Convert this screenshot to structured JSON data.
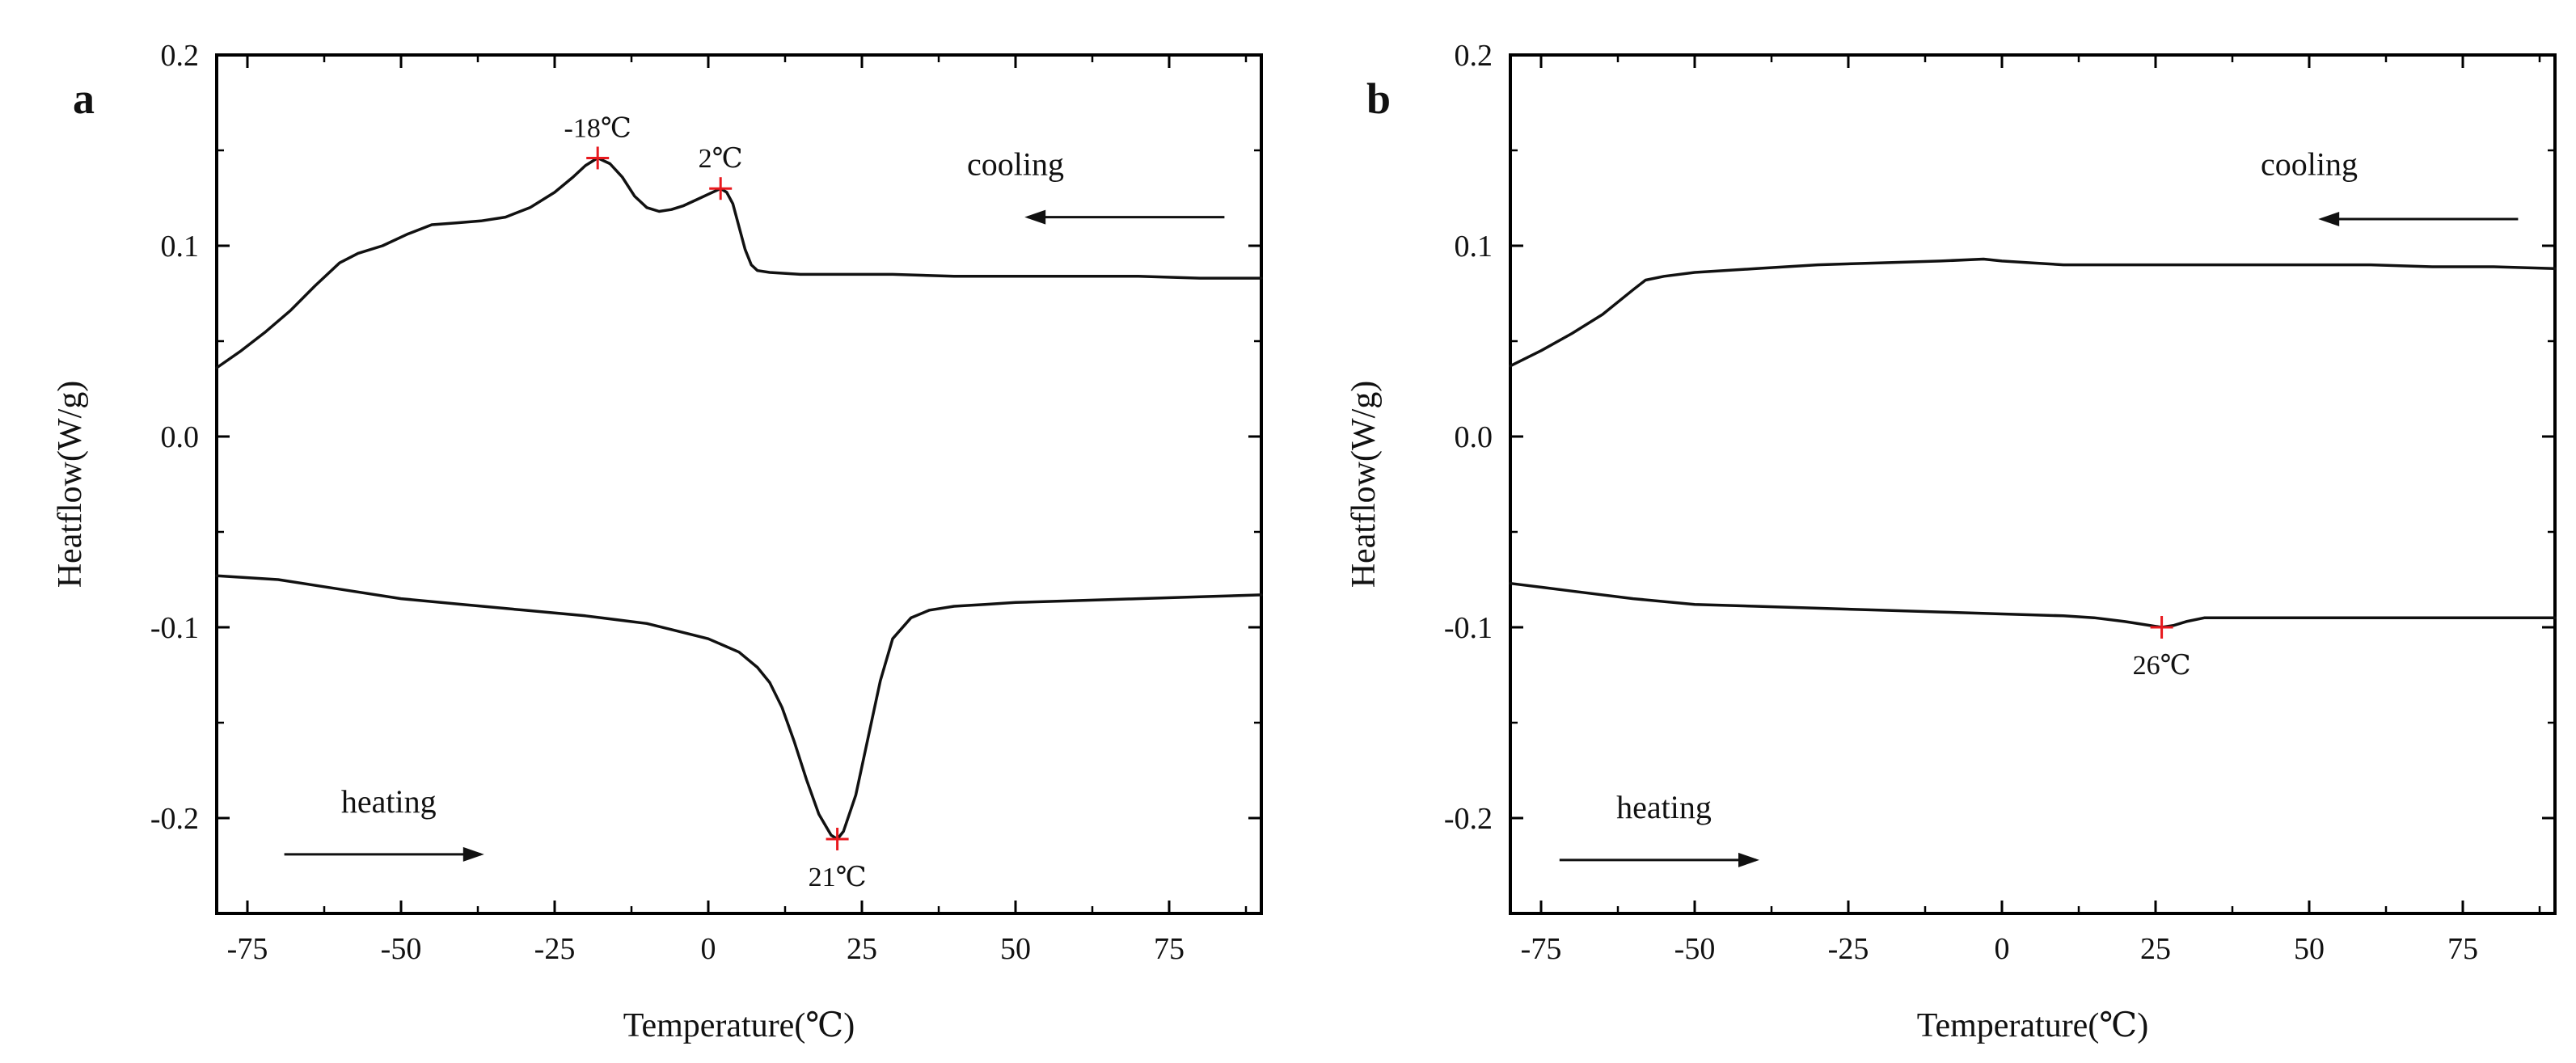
{
  "figure": {
    "colors": {
      "curve": "#111111",
      "axis": "#000000",
      "marker": "#e8191e",
      "background": "#ffffff"
    }
  },
  "chart_data": [
    {
      "panel": "a",
      "type": "line",
      "xlabel": "Temperature(℃)",
      "ylabel": "Heatflow(W/g)",
      "xlim": [
        -80,
        90
      ],
      "ylim": [
        -0.25,
        0.2
      ],
      "xticks": [
        -75,
        -50,
        -25,
        0,
        25,
        50,
        75
      ],
      "xtick_labels": [
        "-75",
        "-50",
        "-25",
        "0",
        "25",
        "50",
        "75"
      ],
      "yticks": [
        -0.2,
        -0.1,
        0.0,
        0.1,
        0.2
      ],
      "ytick_labels": [
        "-0.2",
        "-0.1",
        "0.0",
        "0.1",
        "0.2"
      ],
      "series": [
        {
          "name": "cooling",
          "x": [
            -80,
            -76,
            -72,
            -68,
            -64,
            -60,
            -57,
            -53,
            -49,
            -45,
            -41,
            -37,
            -33,
            -29,
            -25,
            -22,
            -20,
            -18,
            -16,
            -14,
            -12,
            -10,
            -8,
            -6,
            -4,
            -2,
            0,
            2,
            3,
            4,
            5,
            6,
            7,
            8,
            10,
            15,
            20,
            30,
            40,
            50,
            60,
            70,
            80,
            90
          ],
          "y": [
            0.036,
            0.045,
            0.055,
            0.066,
            0.079,
            0.091,
            0.096,
            0.1,
            0.106,
            0.111,
            0.112,
            0.113,
            0.115,
            0.12,
            0.128,
            0.136,
            0.142,
            0.146,
            0.143,
            0.136,
            0.126,
            0.12,
            0.118,
            0.119,
            0.121,
            0.124,
            0.127,
            0.13,
            0.128,
            0.122,
            0.11,
            0.098,
            0.09,
            0.087,
            0.086,
            0.085,
            0.085,
            0.085,
            0.084,
            0.084,
            0.084,
            0.084,
            0.083,
            0.083
          ]
        },
        {
          "name": "heating",
          "x": [
            -80,
            -70,
            -60,
            -50,
            -40,
            -30,
            -20,
            -10,
            -5,
            0,
            5,
            8,
            10,
            12,
            14,
            16,
            18,
            20,
            21,
            22,
            24,
            26,
            28,
            30,
            33,
            36,
            40,
            45,
            50,
            60,
            70,
            80,
            90
          ],
          "y": [
            -0.073,
            -0.075,
            -0.08,
            -0.085,
            -0.088,
            -0.091,
            -0.094,
            -0.098,
            -0.102,
            -0.106,
            -0.113,
            -0.121,
            -0.129,
            -0.142,
            -0.16,
            -0.18,
            -0.198,
            -0.209,
            -0.211,
            -0.207,
            -0.188,
            -0.158,
            -0.128,
            -0.106,
            -0.095,
            -0.091,
            -0.089,
            -0.088,
            -0.087,
            -0.086,
            -0.085,
            -0.084,
            -0.083
          ]
        }
      ],
      "annotations": [
        {
          "label": "-18℃",
          "x": -18,
          "y": 0.146,
          "label_pos": "above"
        },
        {
          "label": "2℃",
          "x": 2,
          "y": 0.13,
          "label_pos": "above"
        },
        {
          "label": "21℃",
          "x": 21,
          "y": -0.211,
          "label_pos": "below"
        }
      ],
      "direction_labels": [
        {
          "text": "cooling",
          "x": 50,
          "y": 0.137,
          "arrow": {
            "x1": 84,
            "x2": 52,
            "y": 0.115
          }
        },
        {
          "text": "heating",
          "x": -52,
          "y": -0.197,
          "arrow": {
            "x1": -69,
            "x2": -37,
            "y": -0.219
          }
        }
      ]
    },
    {
      "panel": "b",
      "type": "line",
      "xlabel": "Temperature(℃)",
      "ylabel": "Heatflow(W/g)",
      "xlim": [
        -80,
        90
      ],
      "ylim": [
        -0.25,
        0.2
      ],
      "xticks": [
        -75,
        -50,
        -25,
        0,
        25,
        50,
        75
      ],
      "xtick_labels": [
        "-75",
        "-50",
        "-25",
        "0",
        "25",
        "50",
        "75"
      ],
      "yticks": [
        -0.2,
        -0.1,
        0.0,
        0.1,
        0.2
      ],
      "ytick_labels": [
        "-0.2",
        "-0.1",
        "0.0",
        "0.1",
        "0.2"
      ],
      "series": [
        {
          "name": "cooling",
          "x": [
            -80,
            -75,
            -70,
            -65,
            -60,
            -58,
            -55,
            -50,
            -40,
            -30,
            -20,
            -10,
            -3,
            0,
            5,
            10,
            20,
            30,
            40,
            50,
            60,
            70,
            80,
            90
          ],
          "y": [
            0.037,
            0.045,
            0.054,
            0.064,
            0.077,
            0.082,
            0.084,
            0.086,
            0.088,
            0.09,
            0.091,
            0.092,
            0.093,
            0.092,
            0.091,
            0.09,
            0.09,
            0.09,
            0.09,
            0.09,
            0.09,
            0.089,
            0.089,
            0.088
          ]
        },
        {
          "name": "heating",
          "x": [
            -80,
            -75,
            -70,
            -60,
            -50,
            -40,
            -30,
            -20,
            -10,
            0,
            10,
            15,
            20,
            24,
            26,
            28,
            30,
            33,
            36,
            40,
            50,
            60,
            70,
            80,
            90
          ],
          "y": [
            -0.077,
            -0.079,
            -0.081,
            -0.085,
            -0.088,
            -0.089,
            -0.09,
            -0.091,
            -0.092,
            -0.093,
            -0.094,
            -0.095,
            -0.097,
            -0.099,
            -0.1,
            -0.099,
            -0.097,
            -0.095,
            -0.095,
            -0.095,
            -0.095,
            -0.095,
            -0.095,
            -0.095,
            -0.095
          ]
        }
      ],
      "annotations": [
        {
          "label": "26℃",
          "x": 26,
          "y": -0.1,
          "label_pos": "below"
        }
      ],
      "direction_labels": [
        {
          "text": "cooling",
          "x": 50,
          "y": 0.137,
          "arrow": {
            "x1": 84,
            "x2": 52,
            "y": 0.114
          }
        },
        {
          "text": "heating",
          "x": -55,
          "y": -0.2,
          "arrow": {
            "x1": -72,
            "x2": -40,
            "y": -0.222
          }
        }
      ]
    }
  ]
}
